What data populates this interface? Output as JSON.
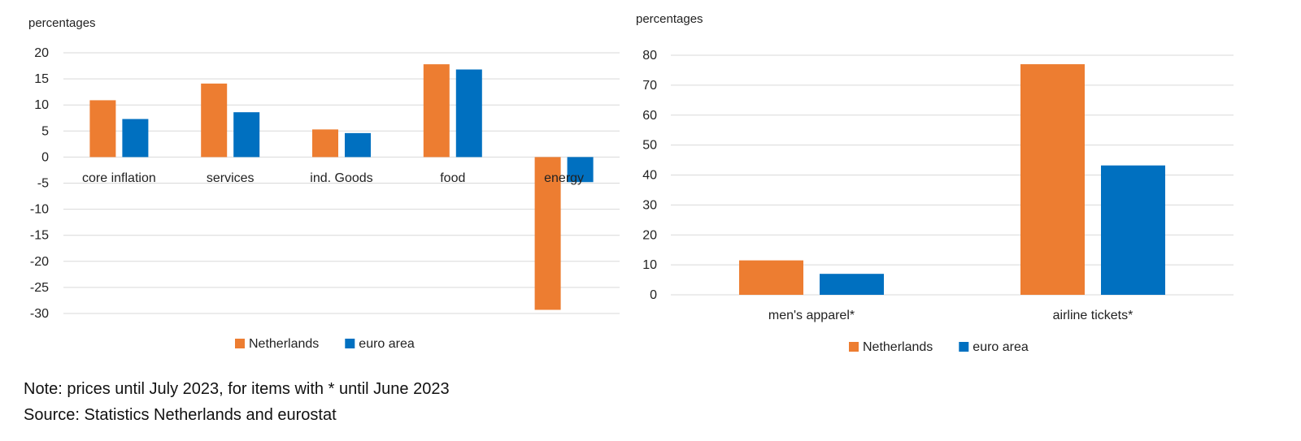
{
  "colors": {
    "netherlands": "#ED7D31",
    "euro_area": "#0070C0",
    "grid": "#D9D9D9",
    "text": "#222222"
  },
  "chart_data": [
    {
      "type": "bar",
      "ylabel": "percentages",
      "ylim": [
        -30,
        20
      ],
      "yticks": [
        20,
        15,
        10,
        5,
        0,
        -5,
        -10,
        -15,
        -20,
        -25,
        -30
      ],
      "categories": [
        "core inflation",
        "services",
        "ind. Goods",
        "food",
        "energy"
      ],
      "series": [
        {
          "name": "Netherlands",
          "values": [
            10.9,
            14.1,
            5.3,
            17.8,
            -29.3
          ]
        },
        {
          "name": "euro area",
          "values": [
            7.3,
            8.6,
            4.6,
            16.8,
            -4.8
          ]
        }
      ],
      "grid": true,
      "legend_position": "bottom"
    },
    {
      "type": "bar",
      "ylabel": "percentages",
      "ylim": [
        0,
        80
      ],
      "yticks": [
        80,
        70,
        60,
        50,
        40,
        30,
        20,
        10,
        0
      ],
      "categories": [
        "men's apparel*",
        "airline tickets*"
      ],
      "series": [
        {
          "name": "Netherlands",
          "values": [
            11.5,
            77.0
          ]
        },
        {
          "name": "euro area",
          "values": [
            7.0,
            43.2
          ]
        }
      ],
      "grid": true,
      "legend_position": "bottom"
    }
  ],
  "notes": {
    "note": "Note: prices until July 2023, for items with * until June 2023",
    "source": "Source: Statistics Netherlands and eurostat"
  }
}
